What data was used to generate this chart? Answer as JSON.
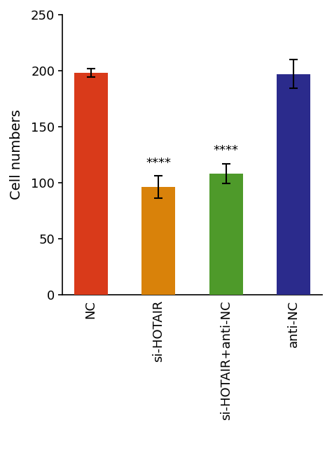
{
  "categories": [
    "NC",
    "si-HOTAIR",
    "si-HOTAIR+anti-NC",
    "anti-NC"
  ],
  "values": [
    198,
    96,
    108,
    197
  ],
  "errors": [
    4,
    10,
    9,
    13
  ],
  "bar_colors": [
    "#D93A1A",
    "#D9820A",
    "#4E9A2A",
    "#2B2B8C"
  ],
  "significance": [
    null,
    "****",
    "****",
    null
  ],
  "ylabel": "Cell numbers",
  "ylim": [
    0,
    250
  ],
  "yticks": [
    0,
    50,
    100,
    150,
    200,
    250
  ],
  "bar_width": 0.5,
  "background_color": "#ffffff",
  "tick_fontsize": 13,
  "ylabel_fontsize": 14,
  "sig_fontsize": 13
}
